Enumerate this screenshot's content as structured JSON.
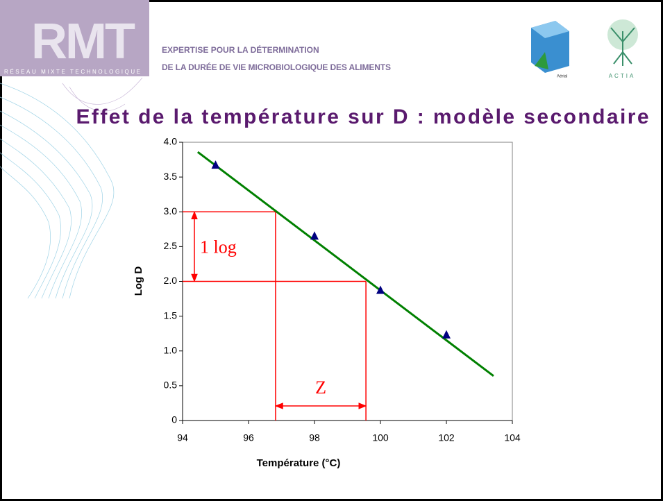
{
  "header": {
    "logo": "RMT",
    "logo_subtitle": "RÉSEAU MIXTE TECHNOLOGIQUE",
    "line1": "EXPERTISE POUR LA DÉTERMINATION",
    "line2": "DE LA DURÉE DE VIE MICROBIOLOGIQUE DES ALIMENTS",
    "partner1": "Aérial",
    "partner2": "ACTIA"
  },
  "chart_data": {
    "type": "scatter",
    "title": "Effet de la température sur D : modèle secondaire",
    "x_label": "Température (°C)",
    "y_label": "Log D",
    "series": [
      {
        "x": [
          95,
          98,
          100,
          102
        ],
        "values": [
          3.67,
          2.65,
          1.87,
          1.23
        ],
        "color": "#000080"
      }
    ],
    "trend": {
      "x": [
        94.46,
        103.43
      ],
      "values": [
        3.86,
        0.64
      ],
      "color": "#008000"
    },
    "reference": {
      "x": [
        96.82,
        99.56
      ],
      "y": [
        3.0,
        2.0
      ],
      "color": "#ff0000",
      "y_label": "1 log",
      "x_label": "Z"
    },
    "xlim": [
      94,
      104
    ],
    "xticks": [
      94,
      96,
      98,
      100,
      102,
      104
    ],
    "ylim": [
      0,
      4
    ],
    "yticks": [
      0,
      0.5,
      {
        "value": 1,
        "label": "1.0"
      },
      1.5,
      {
        "value": 2,
        "label": "2.0"
      },
      2.5,
      {
        "value": 3,
        "label": "3.0"
      },
      3.5,
      {
        "value": 4,
        "label": "4.0"
      }
    ]
  }
}
